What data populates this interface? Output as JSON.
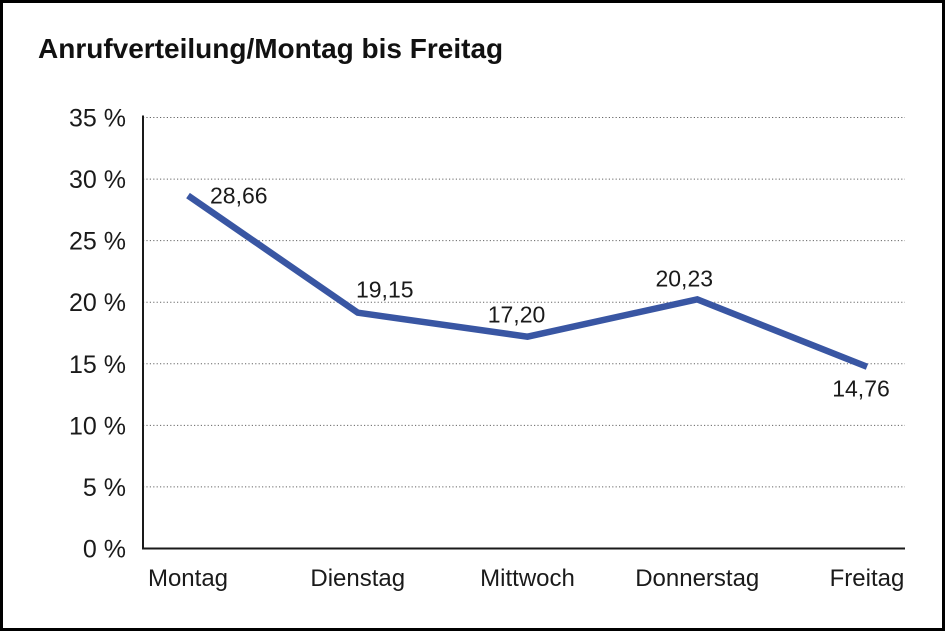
{
  "title": "Anrufverteilung/Montag bis Freitag",
  "chart_data": {
    "type": "line",
    "title": "Anrufverteilung/Montag bis Freitag",
    "categories": [
      "Montag",
      "Dienstag",
      "Mittwoch",
      "Donnerstag",
      "Freitag"
    ],
    "values": [
      28.66,
      19.15,
      17.2,
      20.23,
      14.76
    ],
    "value_labels": [
      "28,66",
      "19,15",
      "17,20",
      "20,23",
      "14,76"
    ],
    "series_name": "Anrufverteilung",
    "xlabel": "",
    "ylabel": "",
    "ylim": [
      0,
      35
    ],
    "ytick_step": 5,
    "ytick_labels": [
      "0 %",
      "5 %",
      "10 %",
      "15 %",
      "20 %",
      "25 %",
      "30 %",
      "35 %"
    ],
    "grid": "horizontal-dotted",
    "legend": null,
    "line_color": "#3956A3",
    "axis_color": "#1a1a1a",
    "grid_color": "#666666",
    "background_color": "#ffffff",
    "border_color": "#000000"
  }
}
